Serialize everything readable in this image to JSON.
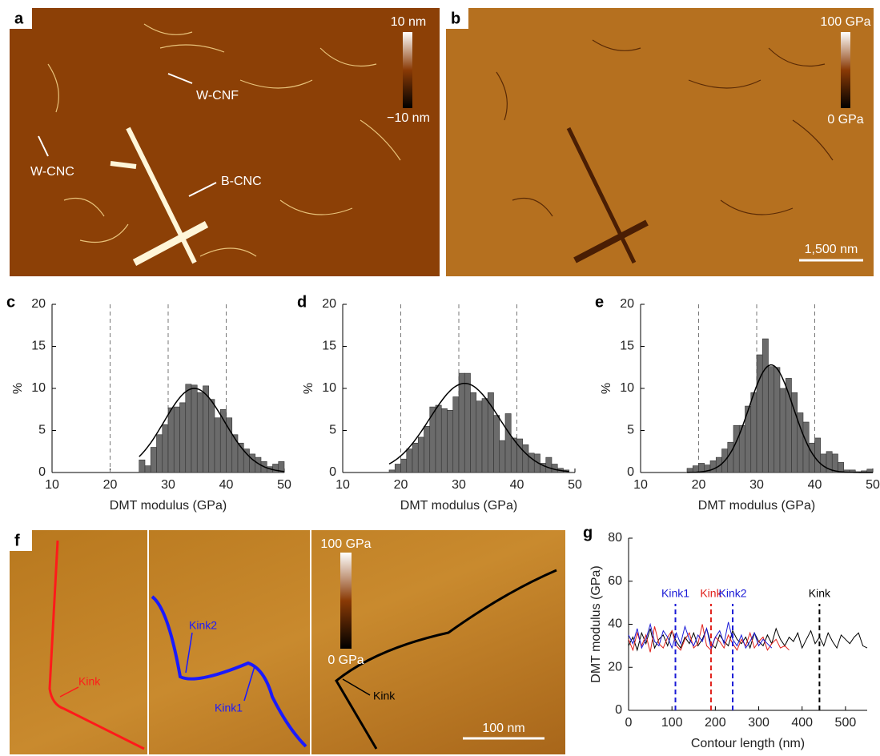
{
  "images": [
    {
      "letter": "a",
      "scale_max": "10 nm",
      "scale_min": "−10 nm",
      "labels": [
        "W-CNF",
        "W-CNC",
        "B-CNC"
      ]
    },
    {
      "letter": "b",
      "scale_max": "100 GPa",
      "scale_min": "0 GPa",
      "scale_bar": "1,500 nm"
    },
    {
      "letter": "f",
      "scale_max": "100 GPa",
      "scale_min": "0 GPa",
      "labels": [
        "Kink",
        "Kink2",
        "Kink1",
        "Kink"
      ],
      "scale_bar": "100 nm"
    }
  ],
  "chart_data": [
    {
      "type": "histogram",
      "panel": "c",
      "x_label": "DMT modulus (GPa)",
      "y_label": "%",
      "bins": [
        25,
        26,
        27,
        28,
        29,
        30,
        31,
        32,
        33,
        34,
        35,
        36,
        37,
        38,
        39,
        40,
        41,
        42,
        43,
        44,
        45,
        46,
        47,
        48,
        49,
        50
      ],
      "values": [
        1.5,
        0.8,
        3.0,
        4.5,
        5.7,
        7.7,
        7.8,
        8.3,
        10.5,
        10.4,
        9.5,
        10.3,
        8.7,
        6.5,
        7.5,
        6.5,
        4.5,
        3.5,
        2.8,
        2.2,
        1.8,
        1.3,
        0.7,
        1.0,
        1.3
      ],
      "fit": {
        "mean": 34.5,
        "sd": 5.2,
        "peak": 10
      },
      "vlines": [
        20,
        30,
        40
      ],
      "color": "#6b6b6b",
      "xlim": [
        10,
        50
      ],
      "xticks": [
        10,
        20,
        30,
        40,
        50
      ],
      "ylim": [
        0,
        20
      ],
      "yticks": [
        0,
        5,
        10,
        15,
        20
      ]
    },
    {
      "type": "histogram",
      "panel": "d",
      "x_label": "DMT modulus (GPa)",
      "y_label": "%",
      "bins": [
        18,
        19,
        20,
        21,
        22,
        23,
        24,
        25,
        26,
        27,
        28,
        29,
        30,
        31,
        32,
        33,
        34,
        35,
        36,
        37,
        38,
        39,
        40,
        41,
        42,
        43,
        44,
        45,
        46,
        47,
        48,
        49
      ],
      "values": [
        0.3,
        1.0,
        1.6,
        2.8,
        3.5,
        4.2,
        5.5,
        7.8,
        8.0,
        7.6,
        7.4,
        9.0,
        11.8,
        11.8,
        9.5,
        8.5,
        8.8,
        9.5,
        6.8,
        3.8,
        7.0,
        4.1,
        4.0,
        3.3,
        2.3,
        2.2,
        1.1,
        1.8,
        1.0,
        0.5,
        0.3
      ],
      "fit": {
        "mean": 31,
        "sd": 6,
        "peak": 10.6
      },
      "vlines": [
        20,
        30,
        40
      ],
      "color": "#6b6b6b",
      "xlim": [
        10,
        50
      ],
      "xticks": [
        10,
        20,
        30,
        40,
        50
      ],
      "ylim": [
        0,
        20
      ],
      "yticks": [
        0,
        5,
        10,
        15,
        20
      ]
    },
    {
      "type": "histogram",
      "panel": "e",
      "x_label": "DMT modulus (GPa)",
      "y_label": "%",
      "bins": [
        18,
        19,
        20,
        21,
        22,
        23,
        24,
        25,
        26,
        27,
        28,
        29,
        30,
        31,
        32,
        33,
        34,
        35,
        36,
        37,
        38,
        39,
        40,
        41,
        42,
        43,
        44,
        45,
        46,
        47,
        48,
        49,
        50
      ],
      "values": [
        0.5,
        0.8,
        1.1,
        0.9,
        1.4,
        1.8,
        2.8,
        3.6,
        5.6,
        5.6,
        7.9,
        9.5,
        14.0,
        15.9,
        12.6,
        12.5,
        10.0,
        11.2,
        9.5,
        7.1,
        6.0,
        3.5,
        4.1,
        2.2,
        2.5,
        2.2,
        1.2,
        0.3,
        0.3,
        0.1,
        0.2,
        0.4
      ],
      "fit": {
        "mean": 32.5,
        "sd": 3.8,
        "peak": 12.8
      },
      "vlines": [
        20,
        30,
        40
      ],
      "color": "#6b6b6b",
      "xlim": [
        10,
        50
      ],
      "xticks": [
        10,
        20,
        30,
        40,
        50
      ],
      "ylim": [
        0,
        20
      ],
      "yticks": [
        0,
        5,
        10,
        15,
        20
      ]
    },
    {
      "type": "line",
      "panel": "g",
      "x_label": "Contour length (nm)",
      "y_label": "DMT modulus (GPa)",
      "series": [
        {
          "color": "#000000",
          "x": [
            0,
            10,
            20,
            30,
            40,
            50,
            60,
            70,
            80,
            90,
            100,
            110,
            120,
            130,
            140,
            150,
            160,
            170,
            180,
            190,
            200,
            210,
            220,
            230,
            240,
            250,
            260,
            270,
            280,
            290,
            300,
            310,
            320,
            330,
            340,
            350,
            360,
            370,
            380,
            390,
            400,
            410,
            420,
            430,
            440,
            450,
            460,
            470,
            480,
            490,
            500,
            510,
            520,
            530,
            540,
            550
          ],
          "values": [
            30,
            34,
            28,
            36,
            31,
            38,
            29,
            33,
            35,
            30,
            37,
            32,
            29,
            34,
            31,
            36,
            30,
            33,
            38,
            31,
            29,
            35,
            32,
            30,
            37,
            33,
            31,
            34,
            29,
            36,
            32,
            30,
            35,
            31,
            38,
            33,
            30,
            34,
            32,
            36,
            29,
            33,
            37,
            31,
            34,
            30,
            36,
            32,
            29,
            35,
            33,
            31,
            34,
            36,
            30,
            29
          ]
        },
        {
          "color": "#e0201b",
          "x": [
            0,
            10,
            20,
            30,
            40,
            50,
            60,
            70,
            80,
            90,
            100,
            110,
            120,
            130,
            140,
            150,
            160,
            170,
            180,
            190,
            200,
            210,
            220,
            230,
            240,
            250,
            260,
            270,
            280,
            290,
            300,
            310,
            320,
            330,
            340,
            350,
            360,
            370
          ],
          "values": [
            33,
            28,
            36,
            30,
            35,
            27,
            39,
            31,
            29,
            34,
            37,
            30,
            28,
            33,
            36,
            29,
            31,
            40,
            30,
            28,
            34,
            32,
            29,
            35,
            31,
            28,
            33,
            30,
            36,
            29,
            32,
            34,
            28,
            31,
            33,
            29,
            30,
            28
          ]
        },
        {
          "color": "#1a1ad6",
          "x": [
            0,
            10,
            20,
            30,
            40,
            50,
            60,
            70,
            80,
            90,
            100,
            110,
            120,
            130,
            140,
            150,
            160,
            170,
            180,
            190,
            200,
            210,
            220,
            230,
            240,
            250,
            260,
            270,
            280,
            290,
            300,
            310,
            320,
            330
          ],
          "values": [
            35,
            31,
            38,
            29,
            33,
            40,
            32,
            30,
            37,
            34,
            29,
            36,
            31,
            39,
            33,
            30,
            35,
            32,
            38,
            29,
            34,
            37,
            31,
            41,
            33,
            30,
            35,
            29,
            32,
            36,
            30,
            33,
            31,
            29
          ]
        }
      ],
      "annotations": [
        {
          "label": "Kink1",
          "x": 108,
          "color": "#1a1ad6"
        },
        {
          "label": "Kink",
          "x": 190,
          "color": "#e0201b"
        },
        {
          "label": "Kink2",
          "x": 240,
          "color": "#1a1ad6"
        },
        {
          "label": "Kink",
          "x": 440,
          "color": "#000000"
        }
      ],
      "xlim": [
        0,
        550
      ],
      "xticks": [
        0,
        100,
        200,
        300,
        400,
        500
      ],
      "ylim": [
        0,
        80
      ],
      "yticks": [
        0,
        20,
        40,
        60,
        80
      ]
    }
  ]
}
